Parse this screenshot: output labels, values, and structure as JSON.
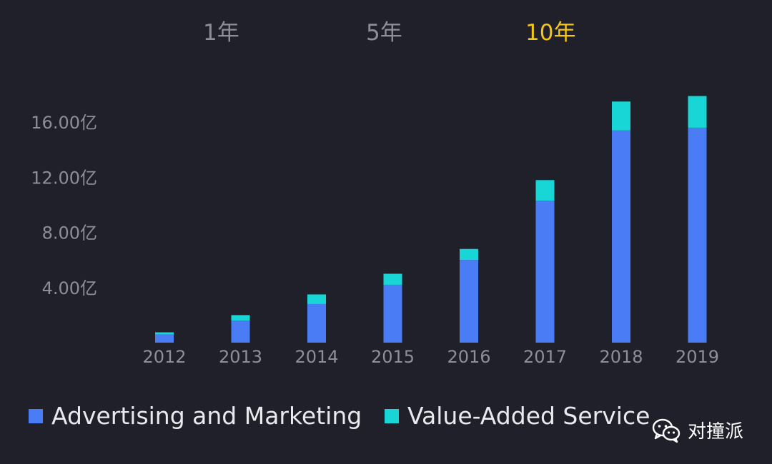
{
  "tabs": [
    {
      "label": "1年",
      "active": false
    },
    {
      "label": "5年",
      "active": false
    },
    {
      "label": "10年",
      "active": true
    }
  ],
  "colors": {
    "background": "#1f2029",
    "advertising": "#4a7cf5",
    "value_added": "#19d6d6",
    "active_tab": "#f5c518",
    "muted_text": "#8e8f96"
  },
  "chart_data": {
    "type": "bar",
    "stacked": true,
    "categories": [
      "2012",
      "2013",
      "2014",
      "2015",
      "2016",
      "2017",
      "2018",
      "2019"
    ],
    "series": [
      {
        "name": "Advertising and Marketing",
        "values": [
          0.6,
          1.6,
          2.8,
          4.2,
          6.0,
          10.3,
          15.4,
          15.6
        ]
      },
      {
        "name": "Value-Added Service",
        "values": [
          0.15,
          0.4,
          0.7,
          0.8,
          0.8,
          1.5,
          2.1,
          2.3
        ]
      }
    ],
    "y_ticks": [
      "4.00亿",
      "8.00亿",
      "12.00亿",
      "16.00亿"
    ],
    "y_tick_values": [
      4,
      8,
      12,
      16
    ],
    "ylim": [
      0,
      18
    ],
    "grid": false,
    "legend_position": "bottom"
  },
  "legend": [
    {
      "label": "Advertising and Marketing",
      "icon": "square-swatch"
    },
    {
      "label": "Value-Added Service",
      "icon": "square-swatch"
    }
  ],
  "watermark": {
    "text": "对撞派",
    "icon": "wechat-icon"
  }
}
